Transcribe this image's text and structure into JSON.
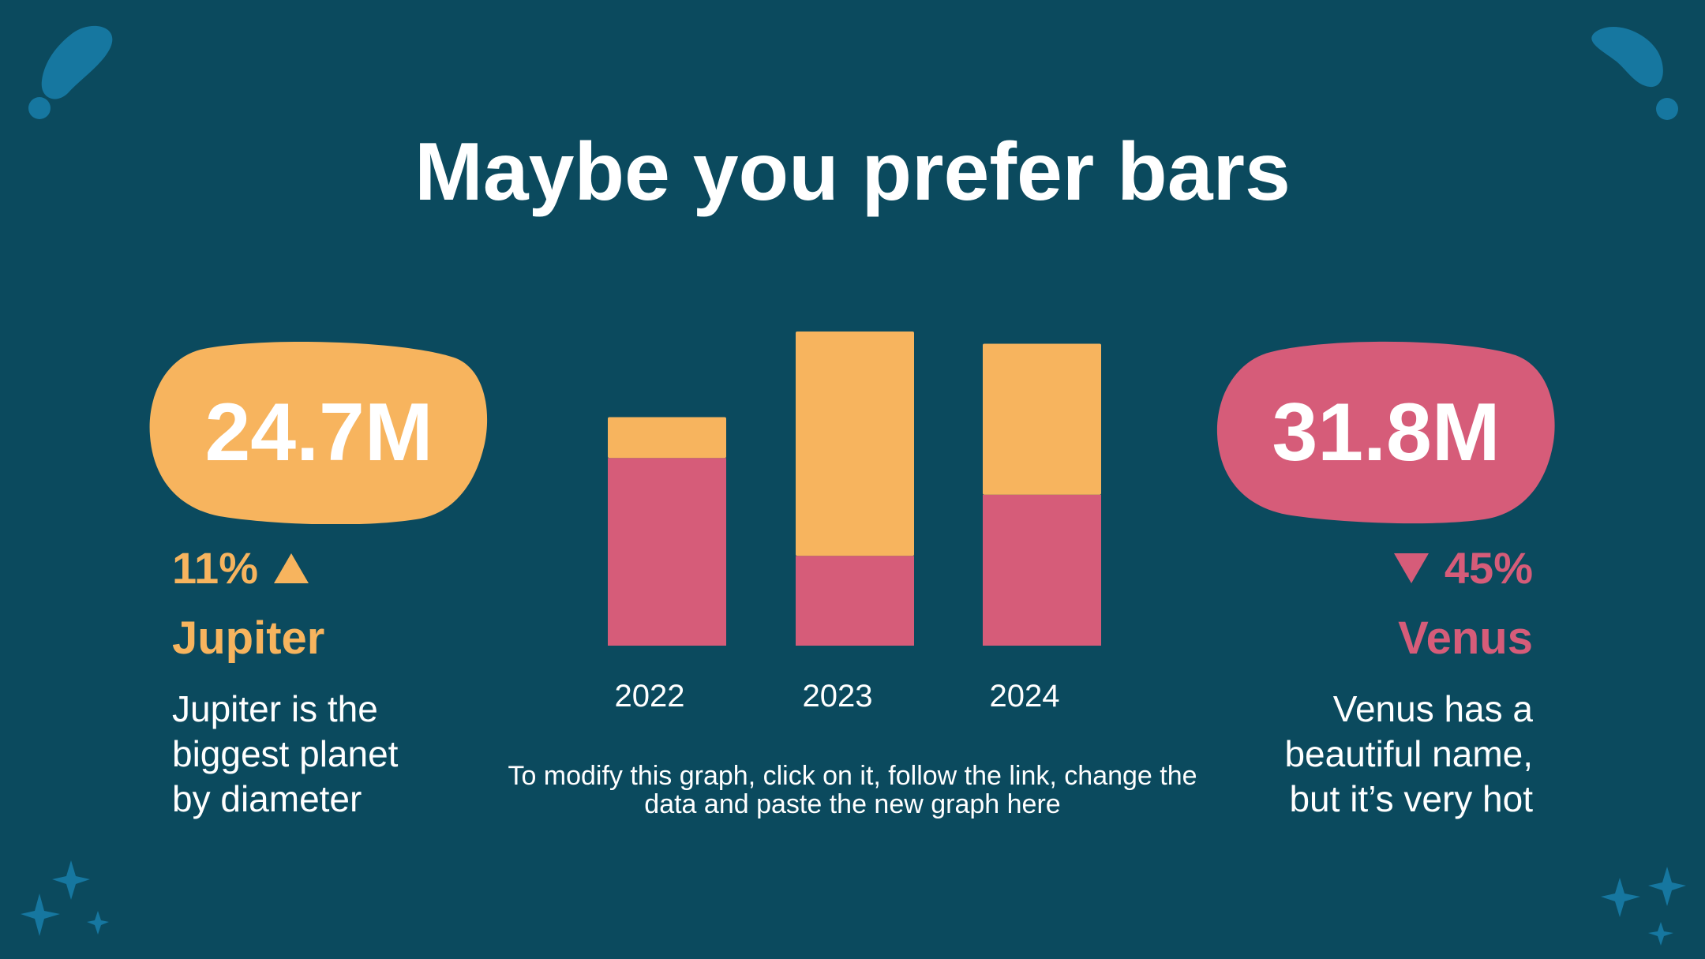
{
  "slide": {
    "title": "Maybe you prefer bars",
    "note": "To modify this graph, click on it, follow the link, change the data and paste the new graph here"
  },
  "left_stat": {
    "value": "24.7M",
    "change": "11%",
    "trend_icon": "triangle-up-icon",
    "planet": "Jupiter",
    "description_lines": [
      "Jupiter is the",
      "biggest planet",
      "by diameter"
    ]
  },
  "right_stat": {
    "value": "31.8M",
    "change": "45%",
    "trend_icon": "triangle-down-icon",
    "planet": "Venus",
    "description_lines": [
      "Venus has a",
      "beautiful name,",
      "but it’s very hot"
    ]
  },
  "colors": {
    "background": "#0b4a5e",
    "accent_orange": "#f7b45e",
    "accent_pink": "#d65c79",
    "decoration": "#1677a0"
  },
  "chart_data": {
    "type": "bar",
    "stacked": true,
    "categories": [
      "2022",
      "2023",
      "2024"
    ],
    "series": [
      {
        "values": [
          23,
          11,
          18.5
        ],
        "color": "#d65c79"
      },
      {
        "values": [
          5,
          27.5,
          18.5
        ],
        "color": "#f7b45e"
      }
    ],
    "ylim": [
      0,
      38.5
    ],
    "grid": false,
    "legend": "none"
  }
}
